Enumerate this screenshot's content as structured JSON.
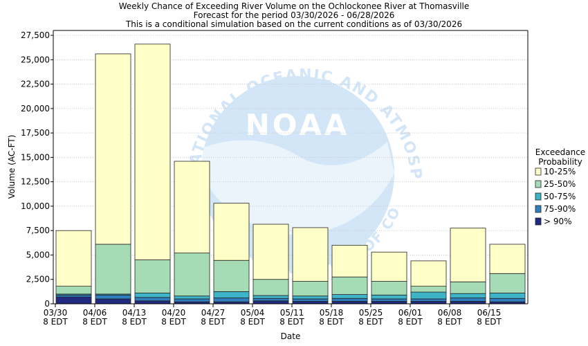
{
  "chart_data": {
    "type": "bar",
    "stacked": true,
    "title_lines": [
      "Weekly Chance of Exceeding River Volume on the Ochlockonee River at Thomasville",
      "Forecast for the period 03/30/2026 - 06/28/2026",
      "This is a conditional simulation based on the current conditions as of 03/30/2026"
    ],
    "xlabel": "Date",
    "ylabel": "Volume (AC-FT)",
    "ylim": [
      0,
      28000
    ],
    "yticks": [
      0,
      2500,
      5000,
      7500,
      10000,
      12500,
      15000,
      17500,
      20000,
      22500,
      25000,
      27500
    ],
    "ytick_labels": [
      "0",
      "2,500",
      "5,000",
      "7,500",
      "10,000",
      "12,500",
      "15,000",
      "17,500",
      "20,000",
      "22,500",
      "25,000",
      "27,500"
    ],
    "grid": true,
    "categories": [
      "03/30",
      "04/06",
      "04/13",
      "04/20",
      "04/27",
      "05/04",
      "05/11",
      "05/18",
      "05/25",
      "06/01",
      "06/08",
      "06/15"
    ],
    "category_sublabel": "8 EDT",
    "legend": {
      "title_lines": [
        "Exceedance",
        "Probability"
      ],
      "position": "right"
    },
    "series": [
      {
        "name": "> 90%",
        "color": "#1f2a80",
        "values": [
          700,
          500,
          300,
          200,
          200,
          300,
          250,
          250,
          250,
          250,
          250,
          200
        ]
      },
      {
        "name": "75-90%",
        "color": "#2f7fbf",
        "values": [
          200,
          400,
          350,
          300,
          400,
          250,
          250,
          300,
          250,
          250,
          350,
          350
        ]
      },
      {
        "name": "50-75%",
        "color": "#3fb3c8",
        "values": [
          100,
          100,
          450,
          300,
          650,
          300,
          300,
          400,
          400,
          700,
          450,
          550
        ]
      },
      {
        "name": "25-50%",
        "color": "#a6dcb5",
        "values": [
          800,
          5100,
          3400,
          4400,
          3200,
          1650,
          1500,
          1800,
          1400,
          600,
          1200,
          2000
        ]
      },
      {
        "name": "10-25%",
        "color": "#ffffc8",
        "values": [
          5700,
          19500,
          22100,
          9400,
          5850,
          5650,
          5500,
          3250,
          3000,
          2600,
          5500,
          3000
        ]
      }
    ],
    "legend_order": [
      "10-25%",
      "25-50%",
      "50-75%",
      "75-90%",
      "> 90%"
    ],
    "watermark": {
      "logo_text": "NOAA",
      "ring_text": "NATIONAL OCEANIC AND ATMOSPHERIC ADMINISTRATION",
      "ring_text_bottom": "U.S. DEPARTMENT OF COMMERCE",
      "color": "#d3e6f7"
    }
  }
}
